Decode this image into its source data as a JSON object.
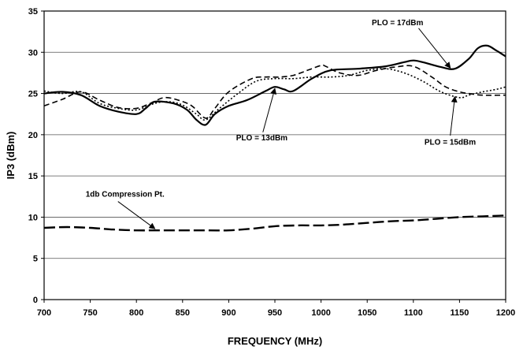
{
  "chart_data": {
    "type": "line",
    "title": "",
    "xlabel": "FREQUENCY (MHz)",
    "ylabel": "IP3 (dBm)",
    "xlim": [
      700,
      1200
    ],
    "ylim": [
      0,
      35
    ],
    "x_ticks": [
      "700",
      "750",
      "800",
      "850",
      "900",
      "950",
      "1000",
      "1050",
      "1100",
      "1150",
      "1200"
    ],
    "y_ticks": [
      "0",
      "5",
      "10",
      "15",
      "20",
      "25",
      "30",
      "35"
    ],
    "grid": "horizontal",
    "legend": "none",
    "series": [
      {
        "name": "PLO = 17dBm",
        "style": "solid",
        "color": "#000000",
        "x": [
          700,
          720,
          740,
          760,
          780,
          800,
          810,
          820,
          840,
          855,
          865,
          875,
          885,
          900,
          920,
          940,
          950,
          960,
          970,
          990,
          1010,
          1040,
          1070,
          1090,
          1100,
          1110,
          1130,
          1145,
          1160,
          1170,
          1180,
          1190,
          1200
        ],
        "y": [
          25.0,
          25.2,
          24.8,
          23.5,
          22.8,
          22.5,
          23.2,
          24.0,
          23.8,
          23.0,
          21.8,
          21.2,
          22.5,
          23.5,
          24.2,
          25.3,
          25.8,
          25.5,
          25.3,
          26.8,
          27.8,
          28.0,
          28.3,
          28.8,
          29.0,
          28.8,
          28.2,
          28.0,
          29.2,
          30.5,
          30.8,
          30.2,
          29.5
        ]
      },
      {
        "name": "PLO = 15dBm",
        "style": "dashed",
        "color": "#000000",
        "x": [
          700,
          720,
          740,
          760,
          780,
          800,
          815,
          830,
          845,
          860,
          875,
          885,
          900,
          925,
          940,
          955,
          970,
          985,
          1000,
          1005,
          1020,
          1040,
          1060,
          1080,
          1100,
          1120,
          1135,
          1150,
          1160,
          1175,
          1200
        ],
        "y": [
          23.5,
          24.3,
          25.2,
          24.2,
          23.3,
          23.2,
          23.8,
          24.5,
          24.2,
          23.5,
          22.0,
          23.2,
          25.2,
          26.8,
          27.0,
          27.0,
          27.2,
          27.8,
          28.4,
          28.3,
          27.5,
          27.2,
          27.8,
          28.2,
          28.3,
          27.0,
          25.8,
          25.2,
          25.0,
          24.8,
          24.8
        ]
      },
      {
        "name": "PLO = 13dBm",
        "style": "dotted",
        "color": "#000000",
        "x": [
          700,
          720,
          740,
          760,
          780,
          800,
          820,
          835,
          850,
          865,
          875,
          890,
          910,
          930,
          950,
          970,
          990,
          1010,
          1030,
          1050,
          1070,
          1090,
          1110,
          1130,
          1150,
          1160,
          1175,
          1190,
          1200
        ],
        "y": [
          25.3,
          25.0,
          25.2,
          23.8,
          23.2,
          23.0,
          23.8,
          24.0,
          23.6,
          22.5,
          21.8,
          23.2,
          25.0,
          26.5,
          26.8,
          26.8,
          27.0,
          27.0,
          27.2,
          27.8,
          28.0,
          27.5,
          26.5,
          25.2,
          24.5,
          24.8,
          25.2,
          25.5,
          25.8
        ]
      },
      {
        "name": "1db Compression Pt.",
        "style": "long-dash",
        "color": "#000000",
        "x": [
          700,
          725,
          750,
          775,
          800,
          825,
          850,
          875,
          900,
          925,
          950,
          975,
          1000,
          1025,
          1050,
          1075,
          1100,
          1125,
          1150,
          1175,
          1200
        ],
        "y": [
          8.7,
          8.8,
          8.7,
          8.5,
          8.4,
          8.4,
          8.4,
          8.4,
          8.4,
          8.6,
          8.9,
          9.0,
          9.0,
          9.1,
          9.3,
          9.5,
          9.6,
          9.8,
          10.0,
          10.1,
          10.2
        ]
      }
    ],
    "annotations": [
      {
        "text": "PLO = 17dBm",
        "label_x": 1055,
        "label_y": 33.3,
        "arrow_to_x": 1140,
        "arrow_to_y": 28.1,
        "anchor": "start"
      },
      {
        "text": "PLO = 13dBm",
        "label_x": 908,
        "label_y": 19.3,
        "arrow_from_x": 937,
        "arrow_from_y": 20.3,
        "arrow_to_x": 950,
        "arrow_to_y": 25.6,
        "anchor": "start"
      },
      {
        "text": "PLO = 15dBm",
        "label_x": 1112,
        "label_y": 18.8,
        "arrow_from_x": 1140,
        "arrow_from_y": 19.9,
        "arrow_to_x": 1145,
        "arrow_to_y": 24.6,
        "anchor": "start"
      },
      {
        "text": "1db Compression Pt.",
        "label_x": 745,
        "label_y": 12.5,
        "arrow_from_x": 780,
        "arrow_from_y": 11.9,
        "arrow_to_x": 820,
        "arrow_to_y": 8.6,
        "anchor": "start"
      }
    ]
  }
}
